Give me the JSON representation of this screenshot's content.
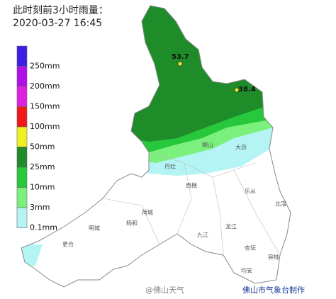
{
  "title": "此时刻前3小时雨量：",
  "time": "2020-03-27 16:45",
  "legend": [
    {
      "label": "250mm",
      "color": "#3c1ee6"
    },
    {
      "label": "200mm",
      "color": "#b010e8"
    },
    {
      "label": "150mm",
      "color": "#e020e0"
    },
    {
      "label": "100mm",
      "color": "#f01818"
    },
    {
      "label": "50mm",
      "color": "#f0f020"
    },
    {
      "label": "25mm",
      "color": "#1e8c28"
    },
    {
      "label": "10mm",
      "color": "#28c83c"
    },
    {
      "label": "3mm",
      "color": "#7cf07c"
    },
    {
      "label": "0.1mm",
      "color": "#b4f4f4"
    }
  ],
  "stations": [
    "53.7",
    "38.4"
  ],
  "places": [
    "狮山",
    "大沥",
    "丹灶",
    "西樵",
    "乐从",
    "北滘",
    "荷城",
    "杨和",
    "明城",
    "更合",
    "九江",
    "龙江",
    "杏坛",
    "容桂",
    "均安"
  ],
  "watermark": "@佛山天气",
  "credit": "佛山市气象台制作"
}
